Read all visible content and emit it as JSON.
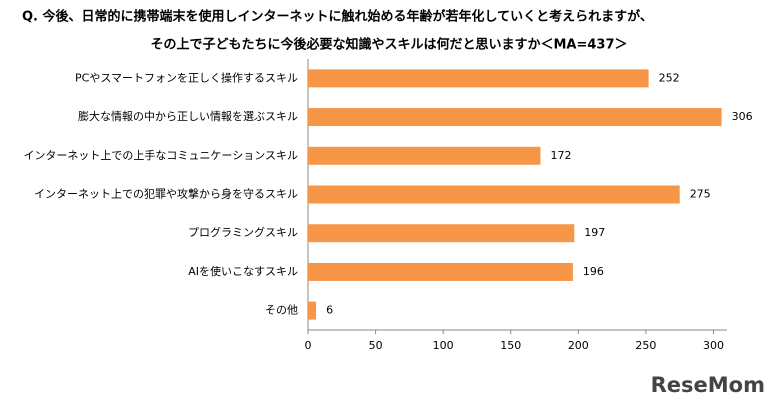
{
  "chart_data": {
    "type": "barh",
    "title": "Q. 今後、日常的に携帯端末を使用しインターネットに触れ始める年齢が若年化していくと考えられますが、",
    "subtitle": "その上で子どもたちに今後必要な知識やスキルは何だと思いますか＜MA=437＞",
    "categories": [
      "PCやスマートフォンを正しく操作するスキル",
      "膨大な情報の中から正しい情報を選ぶスキル",
      "インターネット上での上手なコミュニケーションスキル",
      "インターネット上での犯罪や攻撃から身を守るスキル",
      "プログラミングスキル",
      "AIを使いこなすスキル",
      "その他"
    ],
    "values": [
      252,
      306,
      172,
      275,
      197,
      196,
      6
    ],
    "color": "#f79646",
    "xlim": [
      0,
      310
    ],
    "xticks": [
      0,
      50,
      100,
      150,
      200,
      250,
      300
    ],
    "watermark": "ReseMom"
  }
}
